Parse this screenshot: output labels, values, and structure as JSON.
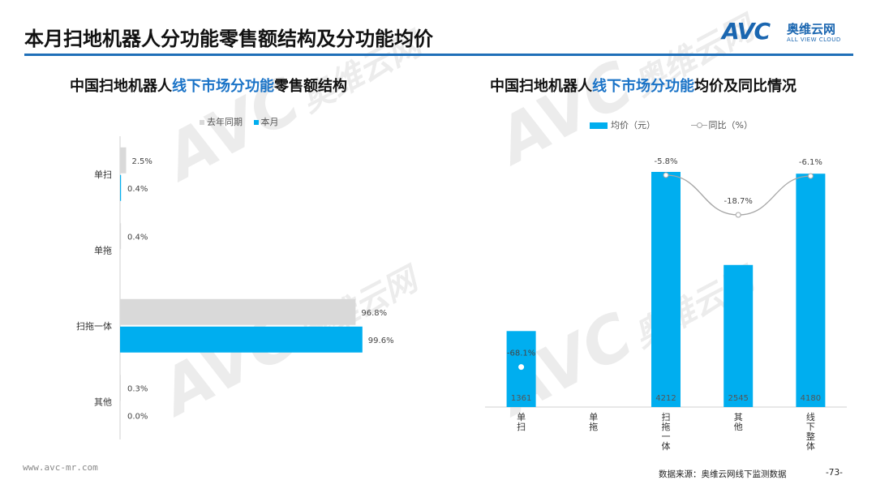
{
  "header": {
    "title": "本月扫地机器人分功能零售额结构及分功能均价",
    "logo_mark": "AVC",
    "logo_cn": "奥维云网",
    "logo_en": "ALL VIEW CLOUD"
  },
  "colors": {
    "accent": "#1f6fb8",
    "this_month": "#00aeef",
    "last_year": "#d9d9d9",
    "yoy_line": "#a6a6a6"
  },
  "left_chart": {
    "title_pre": "中国扫地机器人",
    "title_hl": "线下市场分功能",
    "title_post": "零售额结构",
    "legend_last_year": "去年同期",
    "legend_this_month": "本月"
  },
  "right_chart": {
    "title_pre": "中国扫地机器人",
    "title_hl": "线下市场分功能",
    "title_post": "均价及同比情况",
    "legend_price": "均价（元）",
    "legend_yoy": "同比（%）"
  },
  "chart_data": [
    {
      "type": "bar",
      "orientation": "horizontal",
      "categories": [
        "单扫",
        "单拖",
        "扫拖一体",
        "其他"
      ],
      "series": [
        {
          "name": "去年同期",
          "values": [
            2.5,
            0.4,
            96.8,
            0.3
          ],
          "labels": [
            "2.5%",
            "0.4%",
            "96.8%",
            "0.3%"
          ]
        },
        {
          "name": "本月",
          "values": [
            0.4,
            0.0,
            99.6,
            0.0
          ],
          "labels": [
            "0.4%",
            "",
            "99.6%",
            "0.0%"
          ]
        }
      ],
      "legend": "top"
    },
    {
      "type": "bar",
      "categories": [
        "单扫",
        "单拖",
        "扫拖一体",
        "其他",
        "线下整体"
      ],
      "series": [
        {
          "name": "均价（元）",
          "values": [
            1361,
            null,
            4212,
            2545,
            4180
          ],
          "labels": [
            "1361",
            "",
            "4212",
            "2545",
            "4180"
          ]
        },
        {
          "name": "同比（%）",
          "type": "line",
          "values": [
            -68.1,
            null,
            -5.8,
            -18.7,
            -6.1
          ],
          "labels": [
            "-68.1%",
            "",
            "-5.8%",
            "-18.7%",
            "-6.1%"
          ]
        }
      ],
      "legend": "top"
    }
  ],
  "watermark": {
    "mark": "AVC",
    "cn": "奥维云网",
    "en": "ALL VIEW CLOUD"
  },
  "footer": {
    "url": "www.avc-mr.com",
    "source": "数据来源：奥维云网线下监测数据",
    "page": "-73-"
  }
}
